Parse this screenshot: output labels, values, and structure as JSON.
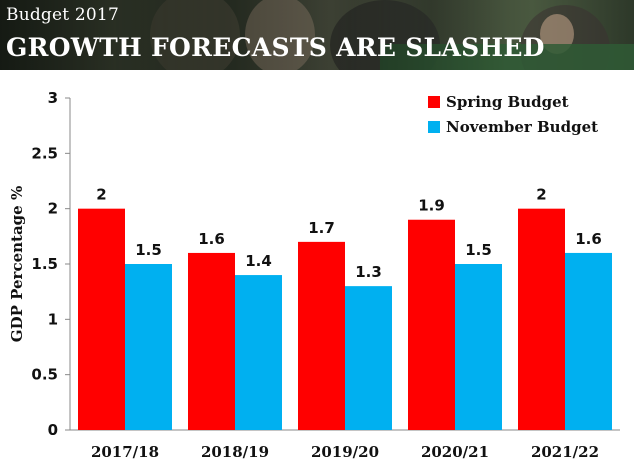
{
  "banner": {
    "kicker": "Budget 2017",
    "headline": "GROWTH FORECASTS ARE SLASHED"
  },
  "colors": {
    "spring": "#ff0000",
    "november": "#00b0f0",
    "axis": "#888888"
  },
  "chart_data": {
    "type": "bar",
    "title": "",
    "xlabel": "",
    "ylabel": "GDP Percentage %",
    "ylim": [
      0,
      3
    ],
    "yticks": [
      "0",
      "0.5",
      "1",
      "1.5",
      "2",
      "2.5",
      "3"
    ],
    "grid": false,
    "legend_position": "top-right",
    "categories": [
      "2017/18",
      "2018/19",
      "2019/20",
      "2020/21",
      "2021/22"
    ],
    "series": [
      {
        "name": "Spring Budget",
        "values": [
          2,
          1.6,
          1.7,
          1.9,
          2
        ],
        "labels": [
          "2",
          "1.6",
          "1.7",
          "1.9",
          "2"
        ]
      },
      {
        "name": "November Budget",
        "values": [
          1.5,
          1.4,
          1.3,
          1.5,
          1.6
        ],
        "labels": [
          "1.5",
          "1.4",
          "1.3",
          "1.5",
          "1.6"
        ]
      }
    ]
  }
}
